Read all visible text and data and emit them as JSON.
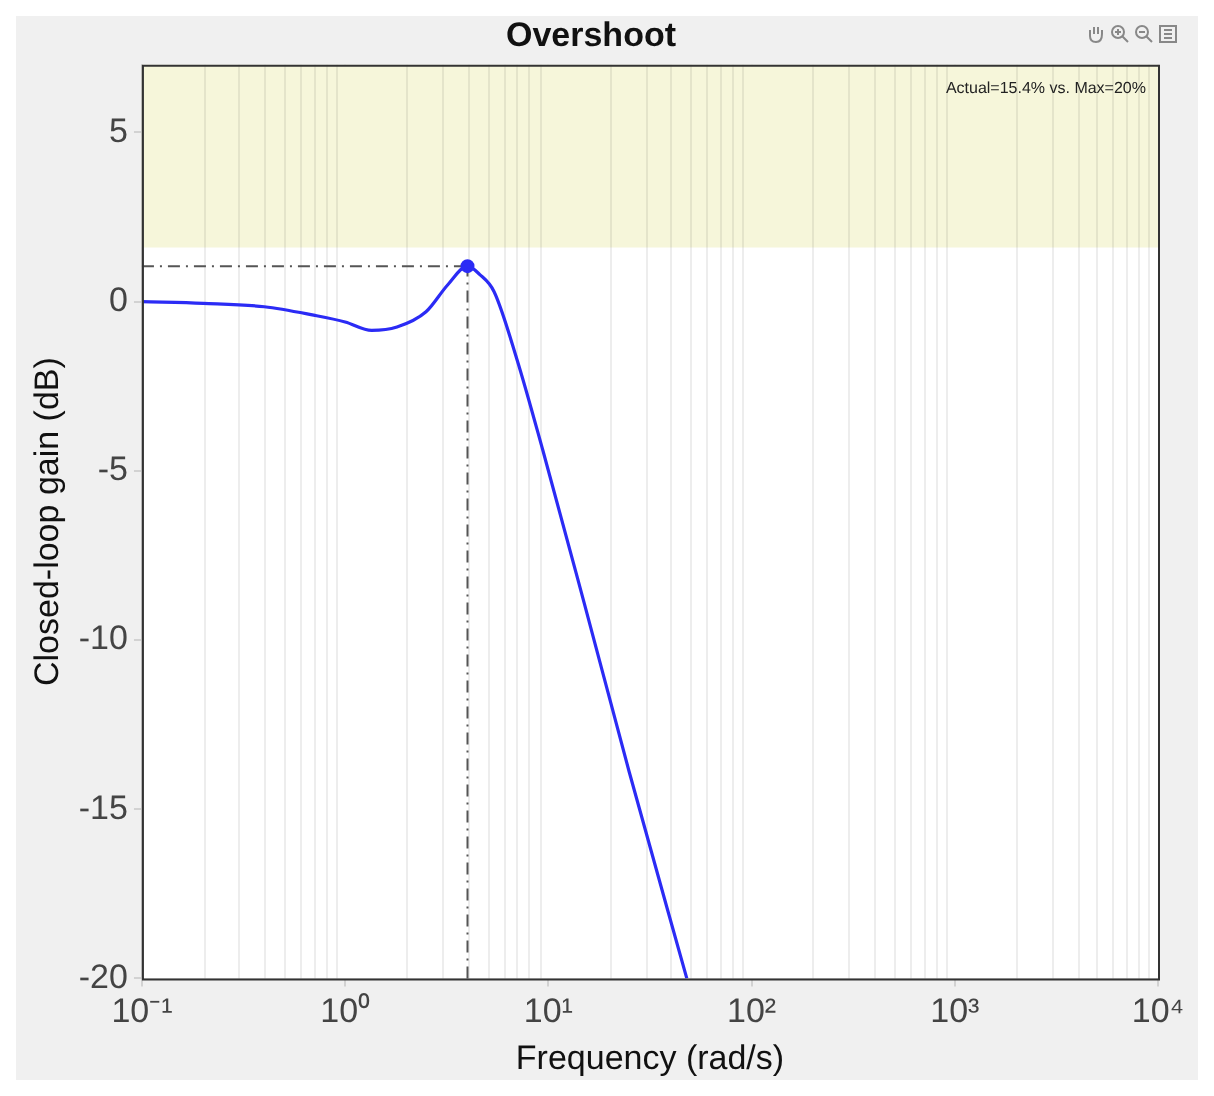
{
  "chart_data": {
    "type": "line",
    "title": "Overshoot",
    "xlabel": "Frequency (rad/s)",
    "ylabel": "Closed-loop gain (dB)",
    "log": "x",
    "grid": true,
    "xlim": [
      0.1,
      10000
    ],
    "xticks": [
      {
        "value": 0.1,
        "label": "10⁻¹"
      },
      {
        "value": 1,
        "label": "10⁰"
      },
      {
        "value": 10,
        "label": "10¹"
      },
      {
        "value": 100,
        "label": "10²"
      },
      {
        "value": 1000,
        "label": "10³"
      },
      {
        "value": 10000,
        "label": "10⁴"
      }
    ],
    "ylim": [
      -20,
      7
    ],
    "yticks": [
      -20,
      -15,
      -10,
      -5,
      0,
      5
    ],
    "series": [
      {
        "color": "#2b2bf5",
        "marker": "none",
        "x": [
          0.1,
          0.2,
          0.4,
          0.7,
          1.0,
          1.35,
          1.8,
          2.5,
          3.2,
          4.0,
          4.6,
          5.4,
          7.0,
          9.4,
          15,
          25,
          48
        ],
        "values": [
          0,
          -0.05,
          -0.15,
          -0.4,
          -0.6,
          -0.85,
          -0.75,
          -0.3,
          0.5,
          1.05,
          0.8,
          0.3,
          -1.7,
          -4.4,
          -8.9,
          -13.9,
          -20
        ]
      },
      {
        "type": "scatter",
        "color": "#2b2bf5",
        "marker": "circle",
        "x": [
          4.0
        ],
        "values": [
          1.05
        ]
      }
    ],
    "ref_lines": [
      {
        "axis": "x",
        "value": 4.0,
        "color": "#555555",
        "line_style": "dashed"
      },
      {
        "axis": "y",
        "value": 1.05,
        "color": "#555555",
        "line_style": "dashed"
      }
    ],
    "bands": [
      {
        "axis": "y",
        "from": 1.6,
        "to": 7,
        "color": "#f6f6da"
      }
    ],
    "annotations": [
      "Actual=15.4% vs. Max=20%"
    ]
  }
}
